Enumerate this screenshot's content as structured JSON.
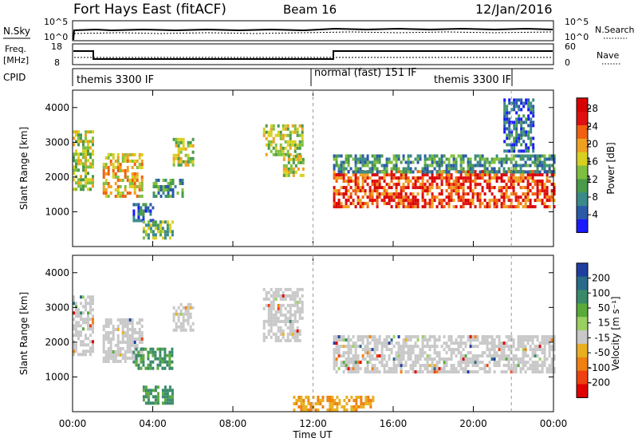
{
  "header": {
    "radar": "Fort Hays East (fitACF)",
    "beam": "Beam 16",
    "date": "12/Jan/2016"
  },
  "noise_panel": {
    "left_label": "N.Sky",
    "right_label": "N.Search",
    "left_ticks": [
      "10^5",
      "10^0"
    ],
    "right_ticks": [
      "10^5",
      "10^0"
    ]
  },
  "freq_panel": {
    "left_label_line1": "Freq.",
    "left_label_line2": "[MHz]",
    "right_label": "Nave",
    "left_ticks": [
      "18",
      "8"
    ],
    "right_ticks": [
      "60",
      "0"
    ]
  },
  "cpid_panel": {
    "label": "CPID",
    "modes": [
      "themis 3300 IF",
      "normal (fast) 151 IF",
      "themis 3300 IF"
    ]
  },
  "x_axis": {
    "label": "Time UT",
    "ticks": [
      "00:00",
      "04:00",
      "08:00",
      "12:00",
      "16:00",
      "20:00",
      "00:00"
    ]
  },
  "chart_data": [
    {
      "type": "heatmap",
      "title": "",
      "xlabel": "Time UT",
      "ylabel": "Slant Range [km]",
      "x_ticks": [
        "00:00",
        "04:00",
        "08:00",
        "12:00",
        "16:00",
        "20:00",
        "00:00"
      ],
      "y_ticks": [
        "1000",
        "2000",
        "3000",
        "4000"
      ],
      "ylim": [
        0,
        4500
      ],
      "colorbar": {
        "label": "Power [dB]",
        "ticks": [
          "4",
          "8",
          "12",
          "16",
          "20",
          "24",
          "28"
        ],
        "colors": [
          "#1a1aff",
          "#2a5aa8",
          "#3a8a8a",
          "#4a9a4a",
          "#7fbf3f",
          "#d8d020",
          "#f0a020",
          "#f06010",
          "#e01010",
          "#d80000"
        ]
      },
      "echo_regions": [
        {
          "t_start": 0.0,
          "t_end": 1.0,
          "r_min": 1600,
          "r_max": 3300,
          "level": 5
        },
        {
          "t_start": 1.5,
          "t_end": 3.5,
          "r_min": 1400,
          "r_max": 2600,
          "level": 6
        },
        {
          "t_start": 3.0,
          "t_end": 4.0,
          "r_min": 700,
          "r_max": 1200,
          "level": 2
        },
        {
          "t_start": 3.5,
          "t_end": 5.0,
          "r_min": 200,
          "r_max": 700,
          "level": 4
        },
        {
          "t_start": 4.0,
          "t_end": 5.5,
          "r_min": 1400,
          "r_max": 1900,
          "level": 3
        },
        {
          "t_start": 5.0,
          "t_end": 6.0,
          "r_min": 2300,
          "r_max": 3100,
          "level": 5
        },
        {
          "t_start": 9.5,
          "t_end": 11.5,
          "r_min": 2600,
          "r_max": 3500,
          "level": 5
        },
        {
          "t_start": 10.5,
          "t_end": 11.5,
          "r_min": 2000,
          "r_max": 2600,
          "level": 5
        },
        {
          "t_start": 13.0,
          "t_end": 24.0,
          "r_min": 1100,
          "r_max": 2200,
          "level": 8
        },
        {
          "t_start": 13.0,
          "t_end": 24.0,
          "r_min": 2100,
          "r_max": 2600,
          "level": 3
        },
        {
          "t_start": 21.5,
          "t_end": 23.0,
          "r_min": 2700,
          "r_max": 4200,
          "level": 2
        }
      ]
    },
    {
      "type": "heatmap",
      "title": "",
      "xlabel": "Time UT",
      "ylabel": "Slant Range [km]",
      "x_ticks": [
        "00:00",
        "04:00",
        "08:00",
        "12:00",
        "16:00",
        "20:00",
        "00:00"
      ],
      "y_ticks": [
        "1000",
        "2000",
        "3000",
        "4000"
      ],
      "ylim": [
        0,
        4500
      ],
      "colorbar": {
        "label": "Velocity [m s⁻¹]",
        "ticks": [
          "200",
          "100",
          "50",
          "15",
          "-15",
          "-50",
          "-100",
          "-200"
        ],
        "colors": [
          "#1f3fa0",
          "#2a6a8a",
          "#3a8a6a",
          "#5aaa3a",
          "#9ad060",
          "#c8c8c8",
          "#e8b020",
          "#f08010",
          "#f04010",
          "#e00000"
        ]
      },
      "echo_regions": [
        {
          "t_start": 0.0,
          "t_end": 1.0,
          "r_min": 1600,
          "r_max": 3300,
          "velocity": "ground scatter"
        },
        {
          "t_start": 1.5,
          "t_end": 3.5,
          "r_min": 1400,
          "r_max": 2600,
          "velocity": "ground scatter"
        },
        {
          "t_start": 3.0,
          "t_end": 5.0,
          "r_min": 1200,
          "r_max": 1800,
          "velocity": "50 to 100"
        },
        {
          "t_start": 3.5,
          "t_end": 5.0,
          "r_min": 200,
          "r_max": 700,
          "velocity": "50"
        },
        {
          "t_start": 5.0,
          "t_end": 6.0,
          "r_min": 2300,
          "r_max": 3100,
          "velocity": "ground scatter"
        },
        {
          "t_start": 9.5,
          "t_end": 11.5,
          "r_min": 2000,
          "r_max": 3500,
          "velocity": "ground scatter"
        },
        {
          "t_start": 13.0,
          "t_end": 24.0,
          "r_min": 1100,
          "r_max": 2200,
          "velocity": "ground scatter"
        },
        {
          "t_start": 11.0,
          "t_end": 15.0,
          "r_min": 0,
          "r_max": 400,
          "velocity": "-50"
        }
      ]
    }
  ]
}
